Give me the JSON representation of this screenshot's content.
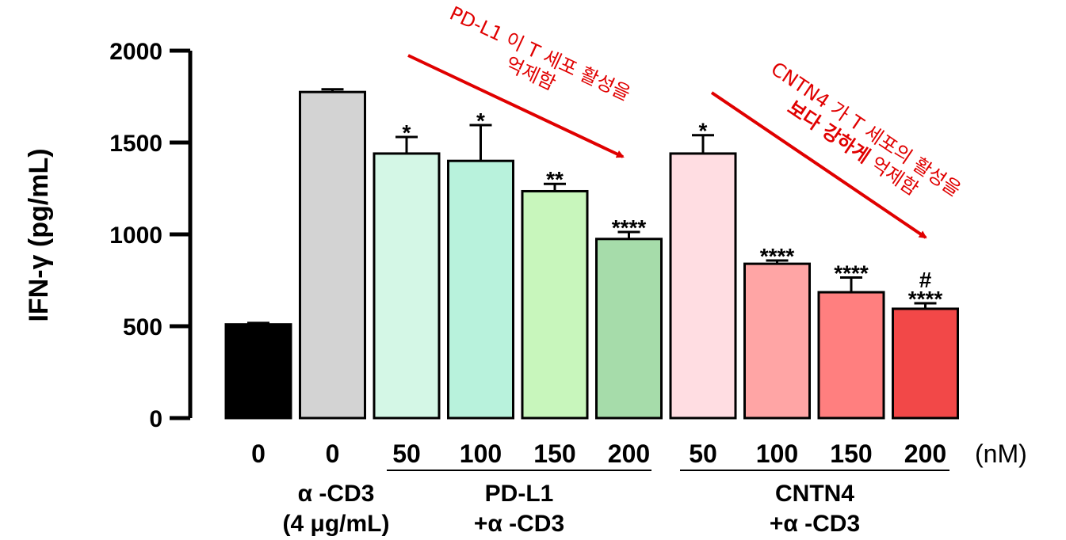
{
  "chart_data": {
    "type": "bar",
    "ylabel": "IFN-γ (pg/mL)",
    "ylim": [
      0,
      2000
    ],
    "yticks": [
      "0",
      "500",
      "1000",
      "1500",
      "2000"
    ],
    "unit_label": "(nM)",
    "categories": [
      "0",
      "0",
      "50",
      "100",
      "150",
      "200",
      "50",
      "100",
      "150",
      "200"
    ],
    "values": [
      510,
      1775,
      1440,
      1400,
      1235,
      975,
      1440,
      840,
      685,
      595
    ],
    "errors": [
      8,
      15,
      90,
      195,
      40,
      38,
      100,
      18,
      80,
      30
    ],
    "colors": [
      "#000000",
      "#d3d3d3",
      "#d4f7e6",
      "#b8f2dc",
      "#c8f6bc",
      "#a6dcaa",
      "#ffdde2",
      "#ffa5a5",
      "#ff7f7f",
      "#f24848"
    ],
    "significance": [
      "",
      "",
      "*",
      "*",
      "**",
      "****",
      "*",
      "****",
      "****",
      "****"
    ],
    "hash_marks": [
      "",
      "",
      "",
      "",
      "",
      "",
      "",
      "",
      "",
      "#"
    ],
    "groups": [
      {
        "lines": [
          "α -CD3",
          "(4 μg/mL)"
        ]
      },
      {
        "lines": [
          "PD-L1",
          "+α -CD3"
        ]
      },
      {
        "lines": [
          "CNTN4",
          "+α -CD3"
        ]
      }
    ],
    "annotations": [
      {
        "lines": [
          "PD-L1 이 T 세포 활성을",
          "억제함"
        ]
      },
      {
        "lines": [
          "CNTN4 가 T 세포의 활성을",
          "보다 강하게 억제함"
        ],
        "bold_part": "보다 강하게"
      }
    ]
  }
}
